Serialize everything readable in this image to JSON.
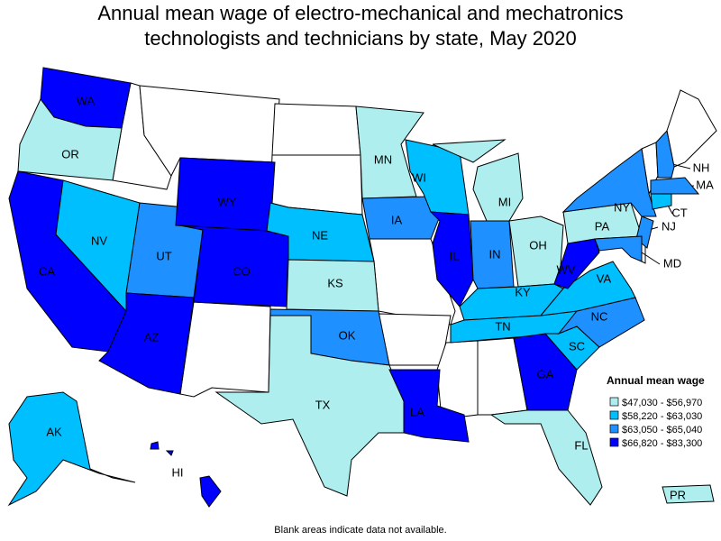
{
  "title": [
    "Annual mean wage of electro-mechanical and mechatronics",
    "technologists and technicians by state, May 2020"
  ],
  "legend": {
    "title": "Annual mean wage",
    "items": [
      {
        "label": "$47,030 - $56,970",
        "color": "#aeeeee"
      },
      {
        "label": "$58,220 - $63,030",
        "color": "#00bfff"
      },
      {
        "label": "$63,050 - $65,040",
        "color": "#1e90ff"
      },
      {
        "label": "$66,820 - $83,300",
        "color": "#0000ff"
      }
    ]
  },
  "states": [
    {
      "label": "WA",
      "level": 3
    },
    {
      "label": "OR",
      "level": 0
    },
    {
      "label": "CA",
      "level": 3
    },
    {
      "label": "NV",
      "level": 1
    },
    {
      "label": "UT",
      "level": 2
    },
    {
      "label": "AZ",
      "level": 3
    },
    {
      "label": "WY",
      "level": 3
    },
    {
      "label": "CO",
      "level": 3
    },
    {
      "label": "NE",
      "level": 1
    },
    {
      "label": "KS",
      "level": 0
    },
    {
      "label": "OK",
      "level": 2
    },
    {
      "label": "TX",
      "level": 0
    },
    {
      "label": "MN",
      "level": 0
    },
    {
      "label": "IA",
      "level": 2
    },
    {
      "label": "WI",
      "level": 1
    },
    {
      "label": "IL",
      "level": 3
    },
    {
      "label": "MI",
      "level": 0
    },
    {
      "label": "IN",
      "level": 2
    },
    {
      "label": "OH",
      "level": 0
    },
    {
      "label": "KY",
      "level": 1
    },
    {
      "label": "TN",
      "level": 1
    },
    {
      "label": "LA",
      "level": 3
    },
    {
      "label": "GA",
      "level": 3
    },
    {
      "label": "FL",
      "level": 0
    },
    {
      "label": "SC",
      "level": 1
    },
    {
      "label": "NC",
      "level": 2
    },
    {
      "label": "VA",
      "level": 1
    },
    {
      "label": "WV",
      "level": 3
    },
    {
      "label": "PA",
      "level": 0
    },
    {
      "label": "NY",
      "level": 2
    },
    {
      "label": "NJ",
      "level": 2
    },
    {
      "label": "CT",
      "level": 1
    },
    {
      "label": "MA",
      "level": 2
    },
    {
      "label": "NH",
      "level": 2
    },
    {
      "label": "MD",
      "level": 2
    },
    {
      "label": "AK",
      "level": 1
    },
    {
      "label": "HI",
      "level": 3
    },
    {
      "label": "PR",
      "level": 0
    }
  ],
  "footnote": "Blank areas indicate data not available."
}
